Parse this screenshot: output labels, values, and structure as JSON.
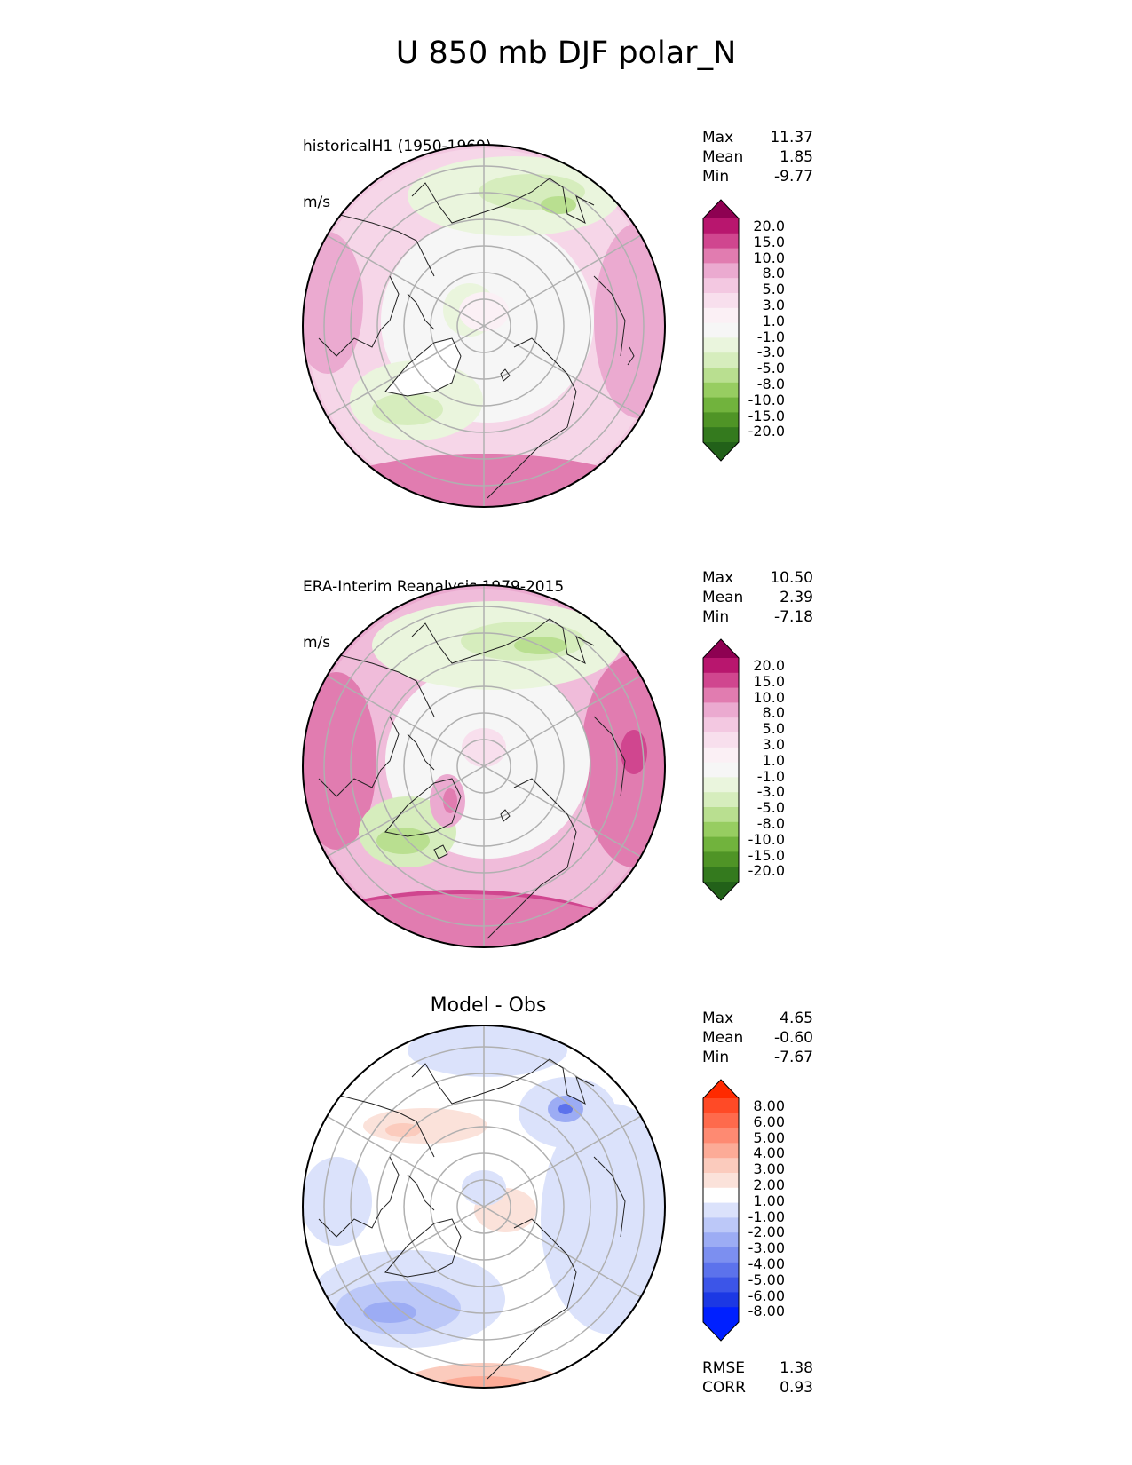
{
  "title": "U 850 mb DJF polar_N",
  "panels": [
    {
      "id": "test",
      "title_line1": "historicalH1 (1950-1969)",
      "title_line2": "m/s",
      "stats": {
        "max_label": "Max",
        "max": "11.37",
        "mean_label": "Mean",
        "mean": "1.85",
        "min_label": "Min",
        "min": "-9.77"
      },
      "colorbar": {
        "labels": [
          "20.0",
          "15.0",
          "10.0",
          "8.0",
          "5.0",
          "3.0",
          "1.0",
          "-1.0",
          "-3.0",
          "-5.0",
          "-8.0",
          "-10.0",
          "-15.0",
          "-20.0"
        ],
        "colors": [
          "#8e0152",
          "#b8166e",
          "#d0468f",
          "#e17cb0",
          "#ebaad0",
          "#f3c8e1",
          "#f8dfed",
          "#fbf0f5",
          "#f6f6f6",
          "#eaf5dd",
          "#d6edbd",
          "#b9df90",
          "#97cd61",
          "#71b33d",
          "#4f9426",
          "#347a1e",
          "#226119"
        ]
      }
    },
    {
      "id": "reference",
      "title_line1": "ERA-Interim Reanalysis 1979-2015",
      "title_line2": "m/s",
      "stats": {
        "max_label": "Max",
        "max": "10.50",
        "mean_label": "Mean",
        "mean": "2.39",
        "min_label": "Min",
        "min": "-7.18"
      },
      "colorbar": {
        "labels": [
          "20.0",
          "15.0",
          "10.0",
          "8.0",
          "5.0",
          "3.0",
          "1.0",
          "-1.0",
          "-3.0",
          "-5.0",
          "-8.0",
          "-10.0",
          "-15.0",
          "-20.0"
        ],
        "colors": [
          "#8e0152",
          "#b8166e",
          "#d0468f",
          "#e17cb0",
          "#ebaad0",
          "#f3c8e1",
          "#f8dfed",
          "#fbf0f5",
          "#f6f6f6",
          "#eaf5dd",
          "#d6edbd",
          "#b9df90",
          "#97cd61",
          "#71b33d",
          "#4f9426",
          "#347a1e",
          "#226119"
        ]
      }
    },
    {
      "id": "diff",
      "title_line1": "Model - Obs",
      "stats": {
        "max_label": "Max",
        "max": "4.65",
        "mean_label": "Mean",
        "mean": "-0.60",
        "min_label": "Min",
        "min": "-7.67"
      },
      "extra_stats": {
        "rmse_label": "RMSE",
        "rmse": "1.38",
        "corr_label": "CORR",
        "corr": "0.93"
      },
      "colorbar": {
        "labels": [
          "8.00",
          "6.00",
          "5.00",
          "4.00",
          "3.00",
          "2.00",
          "1.00",
          "-1.00",
          "-2.00",
          "-3.00",
          "-4.00",
          "-5.00",
          "-6.00",
          "-8.00"
        ],
        "colors": [
          "#ff2a00",
          "#ff4a26",
          "#fe6a4c",
          "#fe8a72",
          "#fcab97",
          "#fbcbbd",
          "#fbe2da",
          "#ffffff",
          "#dbe2fb",
          "#bcc8f8",
          "#9cacf4",
          "#7c8ff0",
          "#5c72ec",
          "#3c55e8",
          "#1c38e4",
          "#0020ff",
          "#0020ff"
        ]
      }
    }
  ]
}
